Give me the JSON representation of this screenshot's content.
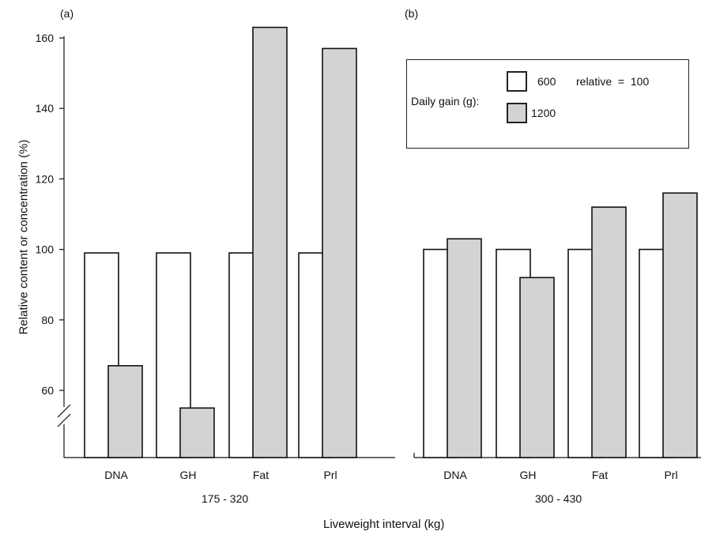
{
  "chart_data": [
    {
      "type": "bar",
      "panel": "(a)",
      "group_label": "175 - 320",
      "categories": [
        "DNA",
        "GH",
        "Fat",
        "Prl"
      ],
      "series": [
        {
          "name": "600",
          "values": [
            99,
            99,
            99,
            99
          ],
          "color": "#ffffff"
        },
        {
          "name": "1200",
          "values": [
            67,
            55,
            163,
            157
          ],
          "color": "#d3d3d3"
        }
      ],
      "ylim": [
        40,
        160
      ],
      "yticks": [
        60,
        80,
        100,
        120,
        140,
        160
      ],
      "axis_break": true
    },
    {
      "type": "bar",
      "panel": "(b)",
      "group_label": "300 - 430",
      "categories": [
        "DNA",
        "GH",
        "Fat",
        "Prl"
      ],
      "series": [
        {
          "name": "600",
          "values": [
            100,
            100,
            100,
            100
          ],
          "color": "#ffffff"
        },
        {
          "name": "1200",
          "values": [
            103,
            92,
            112,
            116
          ],
          "color": "#d3d3d3"
        }
      ],
      "ylim": [
        40,
        160
      ]
    }
  ],
  "ylabel": "Relative content or concentration (%)",
  "xlabel": "Liveweight interval (kg)",
  "legend": {
    "title": "Daily gain (g):",
    "entries": [
      {
        "label": "600",
        "note": "relative  =  100",
        "color": "#ffffff"
      },
      {
        "label": "1200",
        "color": "#d3d3d3"
      }
    ],
    "position": "top-right"
  }
}
